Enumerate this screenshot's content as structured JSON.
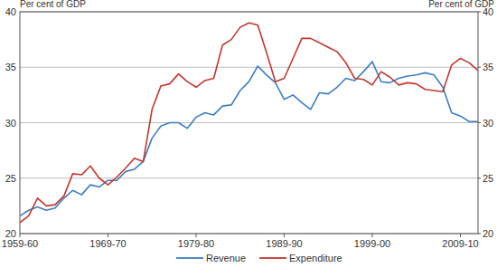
{
  "chart_data": {
    "type": "line",
    "y_label": "Per cent of GDP",
    "y2_label": "Per cent of GDP",
    "categories": [
      "1959-60",
      null,
      null,
      null,
      null,
      null,
      null,
      null,
      null,
      null,
      "1969-70",
      null,
      null,
      null,
      null,
      null,
      null,
      null,
      null,
      null,
      "1979-80",
      null,
      null,
      null,
      null,
      null,
      null,
      null,
      null,
      null,
      "1989-90",
      null,
      null,
      null,
      null,
      null,
      null,
      null,
      null,
      null,
      "1999-00",
      null,
      null,
      null,
      null,
      null,
      null,
      null,
      null,
      null,
      "2009-10",
      null,
      null
    ],
    "series": [
      {
        "name": "Revenue",
        "color": "#3c7dc4",
        "values": [
          21.6,
          22.1,
          22.4,
          22.1,
          22.3,
          23.2,
          23.9,
          23.5,
          24.4,
          24.2,
          24.8,
          24.8,
          25.6,
          25.8,
          26.5,
          28.6,
          29.7,
          30.0,
          30.0,
          29.5,
          30.5,
          30.9,
          30.7,
          31.5,
          31.6,
          32.9,
          33.7,
          35.1,
          34.3,
          33.6,
          32.1,
          32.5,
          31.8,
          31.2,
          32.7,
          32.6,
          33.2,
          34.0,
          33.8,
          34.6,
          35.5,
          33.7,
          33.6,
          34.0,
          34.2,
          34.3,
          34.5,
          34.3,
          33.2,
          30.9,
          30.6,
          30.1,
          30.1
        ]
      },
      {
        "name": "Expenditure",
        "color": "#c2372e",
        "values": [
          21.0,
          21.6,
          23.2,
          22.5,
          22.6,
          23.4,
          25.4,
          25.3,
          26.1,
          25.0,
          24.4,
          25.1,
          25.9,
          26.8,
          26.5,
          31.2,
          33.3,
          33.5,
          34.4,
          33.7,
          33.2,
          33.8,
          34.0,
          37.0,
          37.5,
          38.6,
          39.0,
          38.8,
          36.3,
          33.7,
          34.0,
          35.8,
          37.6,
          37.6,
          37.2,
          36.8,
          36.4,
          35.4,
          34.0,
          33.9,
          33.4,
          34.6,
          34.1,
          33.4,
          33.6,
          33.5,
          33.0,
          32.9,
          32.8,
          35.2,
          35.8,
          35.4,
          34.7
        ]
      }
    ],
    "ylim": [
      20,
      40
    ],
    "yticks": [
      20,
      25,
      30,
      35,
      40
    ],
    "y2lim": [
      20,
      40
    ],
    "y2ticks": [
      20,
      25,
      30,
      35,
      40
    ],
    "grid": true,
    "legend": "bottom"
  }
}
